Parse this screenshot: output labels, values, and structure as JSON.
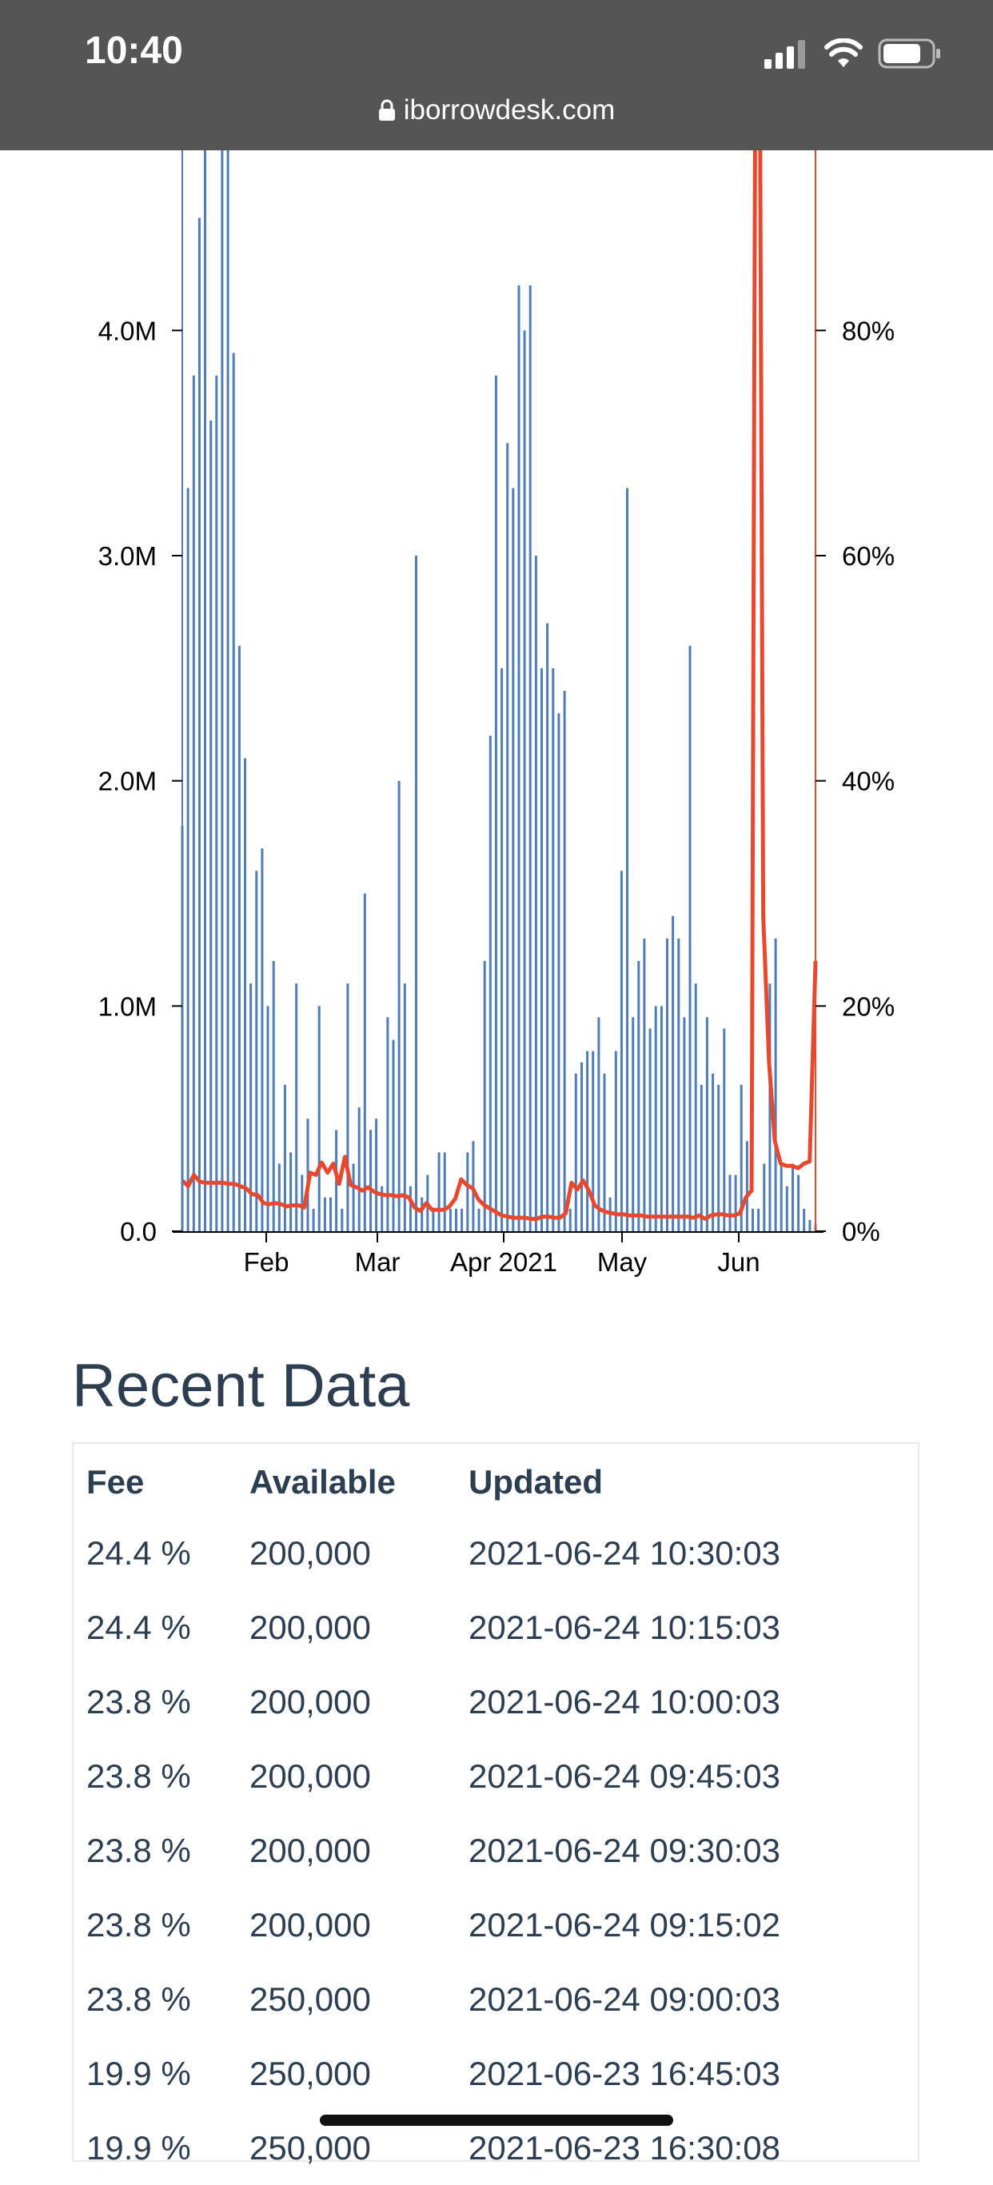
{
  "status_bar": {
    "time": "10:40",
    "url": "iborrowdesk.com",
    "icons": [
      "signal-icon",
      "wifi-icon",
      "battery-icon",
      "lock-icon"
    ]
  },
  "chart_data": {
    "type": "bar+line",
    "x_ticks": [
      "Feb",
      "Mar",
      "Apr 2021",
      "May",
      "Jun"
    ],
    "y_left_ticks": [
      "0.0",
      "1.0M",
      "2.0M",
      "3.0M",
      "4.0M"
    ],
    "y_right_ticks": [
      "0%",
      "20%",
      "40%",
      "60%",
      "80%"
    ],
    "y_left_range": [
      0,
      4800000
    ],
    "y_right_range": [
      0,
      96
    ],
    "colors": {
      "bars": "#4f7db8",
      "line": "#e8492e",
      "axis": "#000000"
    },
    "series": [
      {
        "kind": "bar",
        "axis": "left",
        "values": [
          1800000,
          3300000,
          3800000,
          4500000,
          5000000,
          3600000,
          3800000,
          5000000,
          5000000,
          3900000,
          2600000,
          2100000,
          1100000,
          1600000,
          1700000,
          1000000,
          1200000,
          300000,
          650000,
          350000,
          1100000,
          250000,
          500000,
          100000,
          1000000,
          150000,
          150000,
          450000,
          100000,
          1100000,
          300000,
          550000,
          1500000,
          450000,
          500000,
          200000,
          950000,
          850000,
          2000000,
          1100000,
          200000,
          3000000,
          150000,
          250000,
          100000,
          350000,
          350000,
          100000,
          100000,
          100000,
          350000,
          400000,
          100000,
          1200000,
          2200000,
          3800000,
          2500000,
          3500000,
          3300000,
          4200000,
          4000000,
          4200000,
          3000000,
          2500000,
          2700000,
          2500000,
          2300000,
          2400000,
          100000,
          700000,
          750000,
          800000,
          800000,
          950000,
          700000,
          150000,
          800000,
          1600000,
          3300000,
          950000,
          1200000,
          1300000,
          900000,
          1000000,
          1000000,
          1300000,
          1400000,
          1300000,
          950000,
          2600000,
          1100000,
          650000,
          950000,
          700000,
          650000,
          900000,
          250000,
          250000,
          650000,
          400000,
          100000,
          100000,
          300000,
          1100000,
          1300000,
          300000,
          200000,
          300000,
          250000,
          100000,
          50000,
          30000
        ]
      },
      {
        "kind": "line",
        "axis": "right",
        "values": [
          4.5,
          4,
          5,
          4.4,
          4.3,
          4.3,
          4.3,
          4.3,
          4.2,
          4.2,
          4,
          3.8,
          3.3,
          3.2,
          2.5,
          2.4,
          2.5,
          2.4,
          2.2,
          2.3,
          2.3,
          2.1,
          5.2,
          5,
          6.1,
          5.2,
          6,
          4.2,
          6.6,
          4.1,
          3.9,
          3.6,
          3.9,
          3.5,
          3.3,
          3.2,
          3.2,
          3.1,
          3.2,
          3,
          2.1,
          1.8,
          2.5,
          1.9,
          1.9,
          1.9,
          2.2,
          2.9,
          4.6,
          4.1,
          3.8,
          2.8,
          2.3,
          2,
          1.7,
          1.4,
          1.3,
          1.2,
          1.2,
          1.2,
          1.1,
          1.1,
          1.3,
          1.3,
          1.2,
          1.2,
          1.6,
          4.3,
          3.7,
          4.5,
          3.6,
          2.3,
          1.9,
          1.7,
          1.6,
          1.5,
          1.5,
          1.4,
          1.4,
          1.4,
          1.3,
          1.3,
          1.3,
          1.3,
          1.3,
          1.3,
          1.3,
          1.3,
          1.2,
          1.4,
          1.1,
          1.4,
          1.5,
          1.5,
          1.4,
          1.4,
          1.6,
          3,
          3.6,
          160,
          28,
          15,
          8,
          6,
          5.8,
          5.8,
          5.6,
          6,
          6.2,
          24
        ]
      }
    ]
  },
  "recent": {
    "title": "Recent Data",
    "headers": {
      "fee": "Fee",
      "available": "Available",
      "updated": "Updated"
    },
    "rows": [
      {
        "fee": "24.4 %",
        "available": "200,000",
        "updated": "2021-06-24 10:30:03"
      },
      {
        "fee": "24.4 %",
        "available": "200,000",
        "updated": "2021-06-24 10:15:03"
      },
      {
        "fee": "23.8 %",
        "available": "200,000",
        "updated": "2021-06-24 10:00:03"
      },
      {
        "fee": "23.8 %",
        "available": "200,000",
        "updated": "2021-06-24 09:45:03"
      },
      {
        "fee": "23.8 %",
        "available": "200,000",
        "updated": "2021-06-24 09:30:03"
      },
      {
        "fee": "23.8 %",
        "available": "200,000",
        "updated": "2021-06-24 09:15:02"
      },
      {
        "fee": "23.8 %",
        "available": "250,000",
        "updated": "2021-06-24 09:00:03"
      },
      {
        "fee": "19.9 %",
        "available": "250,000",
        "updated": "2021-06-23 16:45:03"
      },
      {
        "fee": "19.9 %",
        "available": "250,000",
        "updated": "2021-06-23 16:30:08"
      }
    ]
  }
}
